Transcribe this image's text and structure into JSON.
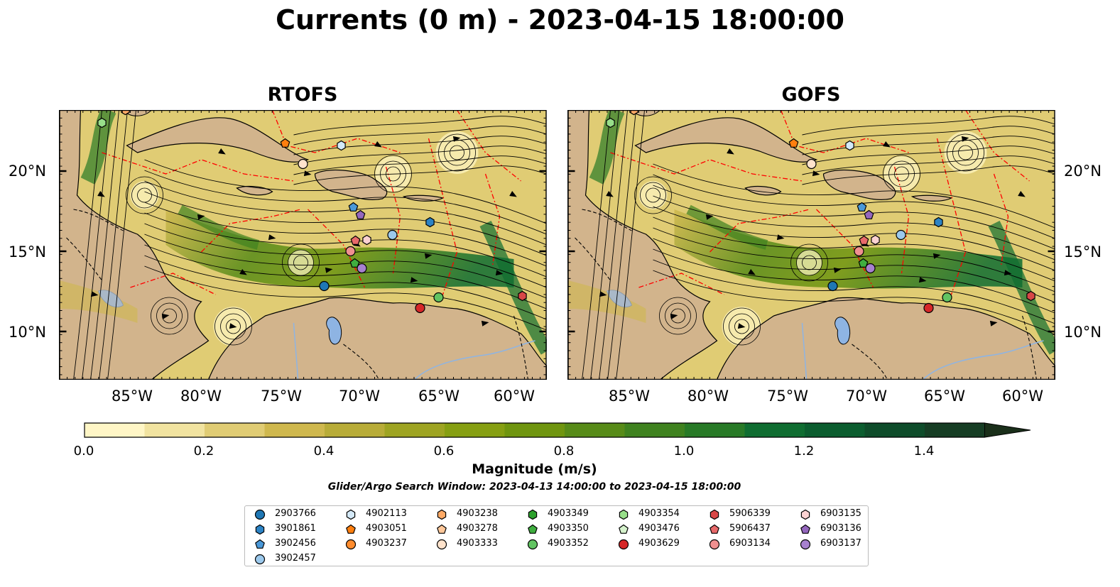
{
  "title": "Currents (0 m) - 2023-04-15 18:00:00",
  "panels": [
    {
      "title": "RTOFS"
    },
    {
      "title": "GOFS"
    }
  ],
  "lat_ticks": [
    "20°N",
    "15°N",
    "10°N"
  ],
  "lon_ticks": [
    "85°W",
    "80°W",
    "75°W",
    "70°W",
    "65°W",
    "60°W"
  ],
  "colorbar": {
    "label": "Magnitude (m/s)",
    "ticks": [
      "0.0",
      "0.2",
      "0.4",
      "0.6",
      "0.8",
      "1.0",
      "1.2",
      "1.4"
    ],
    "min": 0.0,
    "max": 1.5,
    "extend": "max",
    "colors": [
      "#fff6c6",
      "#f1e3a0",
      "#e0cc74",
      "#cfb84e",
      "#b8ac38",
      "#9ea422",
      "#869f12",
      "#6f950f",
      "#578b18",
      "#3f821f",
      "#287a27",
      "#0f6d31",
      "#0b5d2f",
      "#0e4c2a",
      "#163d24",
      "#1a2f1a"
    ]
  },
  "search_window": "Glider/Argo Search Window: 2023-04-13 14:00:00 to 2023-04-15 18:00:00",
  "legend": [
    {
      "id": "2903766",
      "color": "#1f77b4",
      "shape": "circle"
    },
    {
      "id": "3901861",
      "color": "#2c83c5",
      "shape": "hexagon"
    },
    {
      "id": "3902456",
      "color": "#4a98d8",
      "shape": "pentagon"
    },
    {
      "id": "3902457",
      "color": "#9cc9ec",
      "shape": "circle"
    },
    {
      "id": "4902113",
      "color": "#d4e9f8",
      "shape": "hexagon"
    },
    {
      "id": "4903051",
      "color": "#ff7f0e",
      "shape": "pentagon"
    },
    {
      "id": "4903237",
      "color": "#ff8c2e",
      "shape": "circle"
    },
    {
      "id": "4903238",
      "color": "#ffaa66",
      "shape": "hexagon"
    },
    {
      "id": "4903278",
      "color": "#ffc89a",
      "shape": "pentagon"
    },
    {
      "id": "4903333",
      "color": "#ffe3cc",
      "shape": "circle"
    },
    {
      "id": "4903349",
      "color": "#2ca02c",
      "shape": "hexagon"
    },
    {
      "id": "4903350",
      "color": "#3fae3f",
      "shape": "pentagon"
    },
    {
      "id": "4903352",
      "color": "#62c462",
      "shape": "circle"
    },
    {
      "id": "4903354",
      "color": "#98df8a",
      "shape": "hexagon"
    },
    {
      "id": "4903476",
      "color": "#d5f2cc",
      "shape": "pentagon"
    },
    {
      "id": "4903629",
      "color": "#d62728",
      "shape": "circle"
    },
    {
      "id": "5906339",
      "color": "#d84747",
      "shape": "hexagon"
    },
    {
      "id": "5906437",
      "color": "#e8696a",
      "shape": "pentagon"
    },
    {
      "id": "6903134",
      "color": "#f09090",
      "shape": "circle"
    },
    {
      "id": "6903135",
      "color": "#fbd2d2",
      "shape": "hexagon"
    },
    {
      "id": "6903136",
      "color": "#9467bd",
      "shape": "pentagon"
    },
    {
      "id": "6903137",
      "color": "#a781cf",
      "shape": "circle"
    }
  ],
  "land_color": "#d2b48c",
  "lake_color": "#8eb4e3",
  "eez_line_color": "#ff0000"
}
